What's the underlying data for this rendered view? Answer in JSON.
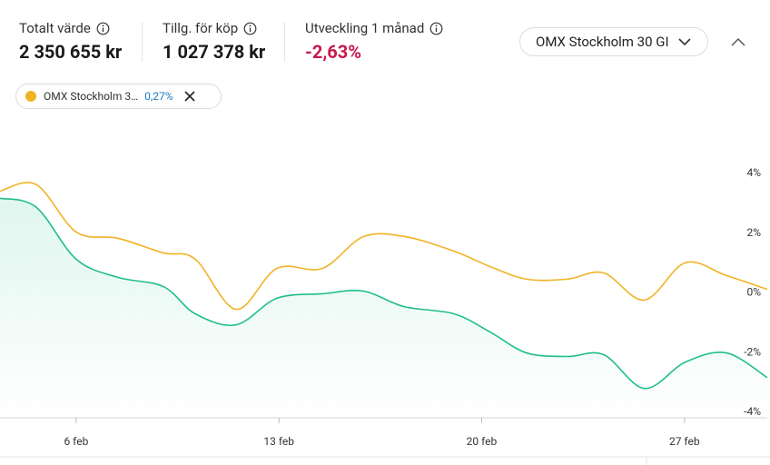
{
  "header": {
    "stats": [
      {
        "label": "Totalt värde",
        "value": "2 350 655 kr"
      },
      {
        "label": "Tillg. för köp",
        "value": "1 027 378 kr"
      },
      {
        "label": "Utveckling 1 månad",
        "value": "-2,63%"
      }
    ]
  },
  "chip": {
    "label": "OMX Stockholm 3…",
    "value": "0,27%"
  },
  "chart_data": {
    "type": "line",
    "x": [
      3.37,
      4.62,
      6,
      7.44,
      9.01,
      10.11,
      11.52,
      12.93,
      14.5,
      15.91,
      17.32,
      19.04,
      20.29,
      21.55,
      22.96,
      24.21,
      25.62,
      27.03,
      28.45,
      29.86
    ],
    "series": [
      {
        "name": "OMX Stockholm 30 GI",
        "color": "#f0b323",
        "values": [
          3.38,
          3.6,
          2.01,
          1.8,
          1.31,
          1.1,
          -0.58,
          0.79,
          0.79,
          1.85,
          1.86,
          1.37,
          0.85,
          0.43,
          0.43,
          0.64,
          -0.27,
          0.98,
          0.55,
          0.09
        ]
      },
      {
        "color": "#1fbf88",
        "values": [
          3.14,
          2.84,
          1.1,
          0.49,
          0.18,
          -0.73,
          -1.1,
          -0.21,
          -0.06,
          0.03,
          -0.49,
          -0.73,
          -1.34,
          -2.04,
          -2.16,
          -2.1,
          -3.23,
          -2.35,
          -2.04,
          -2.87
        ]
      }
    ],
    "xlim": [
      3.37,
      29.86
    ],
    "xticks": [
      {
        "value": 6,
        "label": "6 feb"
      },
      {
        "value": 13,
        "label": "13 feb"
      },
      {
        "value": 20,
        "label": "20 feb"
      },
      {
        "value": 27,
        "label": "27 feb"
      }
    ],
    "ylim": [
      -4,
      4
    ],
    "yticks": [
      {
        "value": 4,
        "label": "4%"
      },
      {
        "value": 2,
        "label": "2%"
      },
      {
        "value": 0,
        "label": "0%"
      },
      {
        "value": -2,
        "label": "-2%"
      },
      {
        "value": -4,
        "label": "-4%"
      }
    ]
  }
}
